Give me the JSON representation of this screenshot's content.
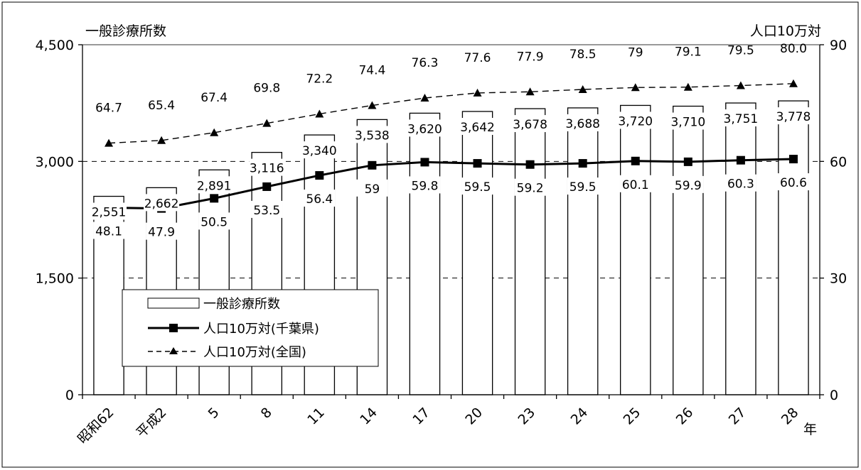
{
  "chart_data": {
    "type": "bar",
    "title_left": "一般診療所数",
    "title_right": "人口10万対",
    "x_unit": "年",
    "categories": [
      "昭和62",
      "平成2",
      "5",
      "8",
      "11",
      "14",
      "17",
      "20",
      "23",
      "24",
      "25",
      "26",
      "27",
      "28"
    ],
    "y_left": {
      "min": 0,
      "max": 4500,
      "ticks": [
        "0",
        "1,500",
        "3,000",
        "4,500"
      ]
    },
    "y_right": {
      "min": 0,
      "max": 90,
      "ticks": [
        "0",
        "30",
        "60",
        "90"
      ]
    },
    "grid": "dashed horizontal at 1,500 and 3,000",
    "legend_position": "center-left inside plot",
    "series": [
      {
        "name": "一般診療所数",
        "kind": "bar",
        "axis": "left",
        "values": [
          2551,
          2662,
          2891,
          3116,
          3340,
          3538,
          3620,
          3642,
          3678,
          3688,
          3720,
          3710,
          3751,
          3778
        ],
        "labels": [
          "2,551",
          "2,662",
          "2,891",
          "3,116",
          "3,340",
          "3,538",
          "3,620",
          "3,642",
          "3,678",
          "3,688",
          "3,720",
          "3,710",
          "3,751",
          "3,778"
        ]
      },
      {
        "name": "人口10万対(千葉県)",
        "kind": "line",
        "axis": "right",
        "marker": "square",
        "values": [
          48.1,
          47.9,
          50.5,
          53.5,
          56.4,
          59,
          59.8,
          59.5,
          59.2,
          59.5,
          60.1,
          59.9,
          60.3,
          60.6
        ],
        "labels": [
          "48.1",
          "47.9",
          "50.5",
          "53.5",
          "56.4",
          "59",
          "59.8",
          "59.5",
          "59.2",
          "59.5",
          "60.1",
          "59.9",
          "60.3",
          "60.6"
        ]
      },
      {
        "name": "人口10万対(全国)",
        "kind": "dashed-line",
        "axis": "right",
        "marker": "triangle",
        "values": [
          64.7,
          65.4,
          67.4,
          69.8,
          72.2,
          74.4,
          76.3,
          77.6,
          77.9,
          78.5,
          79,
          79.1,
          79.5,
          80.0
        ],
        "labels": [
          "64.7",
          "65.4",
          "67.4",
          "69.8",
          "72.2",
          "74.4",
          "76.3",
          "77.6",
          "77.9",
          "78.5",
          "79",
          "79.1",
          "79.5",
          "80.0"
        ]
      }
    ]
  }
}
